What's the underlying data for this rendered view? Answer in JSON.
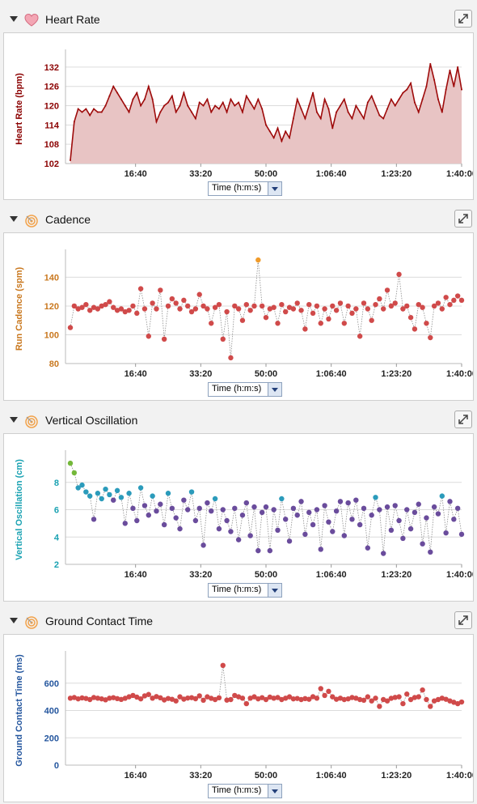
{
  "panels": [
    {
      "id": "hr",
      "title": "Heart Rate",
      "icon": "heart-icon",
      "x_selector": "Time (h:m:s)",
      "chart_data": {
        "type": "area",
        "ylabel": "Heart Rate (bpm)",
        "ylabel_color": "#8b0000",
        "line_color": "#9e0b0b",
        "fill_color": "#e8c4c4",
        "ylim": [
          102,
          136
        ],
        "yticks": [
          102,
          108,
          114,
          120,
          126,
          132
        ],
        "xlim_seconds": [
          0,
          6000
        ],
        "xticks": [
          "16:40",
          "33:20",
          "50:00",
          "1:06:40",
          "1:23:20",
          "1:40:00"
        ],
        "x_seconds": [
          0,
          60,
          120,
          180,
          240,
          300,
          360,
          420,
          480,
          540,
          600,
          660,
          720,
          780,
          840,
          900,
          960,
          1020,
          1080,
          1140,
          1200,
          1260,
          1320,
          1380,
          1440,
          1500,
          1560,
          1620,
          1680,
          1740,
          1800,
          1860,
          1920,
          1980,
          2040,
          2100,
          2160,
          2220,
          2280,
          2340,
          2400,
          2460,
          2520,
          2580,
          2640,
          2700,
          2760,
          2820,
          2880,
          2940,
          3000,
          3060,
          3120,
          3180,
          3240,
          3300,
          3360,
          3420,
          3480,
          3540,
          3600,
          3660,
          3720,
          3780,
          3840,
          3900,
          3960,
          4020,
          4080,
          4140,
          4200,
          4260,
          4320,
          4380,
          4440,
          4500,
          4560,
          4620,
          4680,
          4740,
          4800,
          4860,
          4920,
          4980,
          5040,
          5100,
          5160,
          5220,
          5280,
          5340,
          5400,
          5460,
          5520,
          5580,
          5640,
          5700,
          5760,
          5820,
          5880,
          5940,
          6000
        ],
        "values": [
          103,
          115,
          119,
          118,
          119,
          117,
          119,
          118,
          118,
          120,
          123,
          126,
          124,
          122,
          120,
          118,
          122,
          124,
          120,
          122,
          126,
          122,
          115,
          118,
          120,
          121,
          123,
          118,
          120,
          124,
          120,
          118,
          116,
          121,
          120,
          122,
          118,
          120,
          119,
          121,
          118,
          122,
          120,
          121,
          118,
          123,
          121,
          119,
          122,
          119,
          114,
          112,
          110,
          113,
          109,
          112,
          110,
          116,
          122,
          119,
          116,
          120,
          124,
          118,
          116,
          122,
          119,
          113,
          118,
          120,
          122,
          118,
          116,
          120,
          118,
          116,
          121,
          123,
          120,
          117,
          116,
          119,
          122,
          120,
          122,
          124,
          125,
          127,
          121,
          118,
          122,
          126,
          133,
          128,
          122,
          118,
          125,
          131,
          126,
          132,
          125
        ]
      }
    },
    {
      "id": "cad",
      "title": "Cadence",
      "icon": "running-icon",
      "x_selector": "Time (h:m:s)",
      "chart_data": {
        "type": "scatter",
        "ylabel": "Run Cadence (spm)",
        "ylabel_color": "#c9781f",
        "ylim": [
          80,
          156
        ],
        "yticks": [
          80,
          100,
          120,
          140
        ],
        "xlim_seconds": [
          0,
          6000
        ],
        "xticks": [
          "16:40",
          "33:20",
          "50:00",
          "1:06:40",
          "1:23:20",
          "1:40:00"
        ],
        "x_seconds": [
          0,
          60,
          120,
          180,
          240,
          300,
          360,
          420,
          480,
          540,
          600,
          660,
          720,
          780,
          840,
          900,
          960,
          1020,
          1080,
          1140,
          1200,
          1260,
          1320,
          1380,
          1440,
          1500,
          1560,
          1620,
          1680,
          1740,
          1800,
          1860,
          1920,
          1980,
          2040,
          2100,
          2160,
          2220,
          2280,
          2340,
          2400,
          2460,
          2520,
          2580,
          2640,
          2700,
          2760,
          2820,
          2880,
          2940,
          3000,
          3060,
          3120,
          3180,
          3240,
          3300,
          3360,
          3420,
          3480,
          3540,
          3600,
          3660,
          3720,
          3780,
          3840,
          3900,
          3960,
          4020,
          4080,
          4140,
          4200,
          4260,
          4320,
          4380,
          4440,
          4500,
          4560,
          4620,
          4680,
          4740,
          4800,
          4860,
          4920,
          4980,
          5040,
          5100,
          5160,
          5220,
          5280,
          5340,
          5400,
          5460,
          5520,
          5580,
          5640,
          5700,
          5760,
          5820,
          5880,
          5940,
          6000
        ],
        "values": [
          105,
          120,
          118,
          119,
          121,
          117,
          119,
          118,
          120,
          121,
          123,
          119,
          117,
          118,
          116,
          117,
          120,
          115,
          132,
          118,
          99,
          122,
          118,
          131,
          97,
          120,
          125,
          122,
          118,
          124,
          120,
          116,
          118,
          128,
          120,
          118,
          108,
          119,
          121,
          97,
          116,
          84,
          120,
          118,
          110,
          121,
          117,
          120,
          152,
          120,
          112,
          118,
          119,
          108,
          121,
          116,
          119,
          118,
          122,
          117,
          104,
          121,
          115,
          120,
          108,
          118,
          111,
          120,
          117,
          122,
          108,
          120,
          115,
          118,
          99,
          122,
          118,
          110,
          121,
          125,
          118,
          131,
          120,
          122,
          142,
          118,
          120,
          112,
          104,
          121,
          119,
          108,
          98,
          120,
          122,
          118,
          126,
          121,
          124,
          127,
          124
        ],
        "highlight_index": 48,
        "highlight_color": "#f09b2a",
        "dot_color": "#d04a4a"
      }
    },
    {
      "id": "vo",
      "title": "Vertical Oscillation",
      "icon": "running-icon",
      "x_selector": "Time (h:m:s)",
      "chart_data": {
        "type": "scatter",
        "ylabel": "Vertical Oscillation (cm)",
        "ylabel_color": "#1aa2b2",
        "ylim": [
          2,
          10
        ],
        "yticks": [
          2,
          4,
          6,
          8
        ],
        "xlim_seconds": [
          0,
          6000
        ],
        "xticks": [
          "16:40",
          "33:20",
          "50:00",
          "1:06:40",
          "1:23:20",
          "1:40:00"
        ],
        "x_seconds": [
          0,
          60,
          120,
          180,
          240,
          300,
          360,
          420,
          480,
          540,
          600,
          660,
          720,
          780,
          840,
          900,
          960,
          1020,
          1080,
          1140,
          1200,
          1260,
          1320,
          1380,
          1440,
          1500,
          1560,
          1620,
          1680,
          1740,
          1800,
          1860,
          1920,
          1980,
          2040,
          2100,
          2160,
          2220,
          2280,
          2340,
          2400,
          2460,
          2520,
          2580,
          2640,
          2700,
          2760,
          2820,
          2880,
          2940,
          3000,
          3060,
          3120,
          3180,
          3240,
          3300,
          3360,
          3420,
          3480,
          3540,
          3600,
          3660,
          3720,
          3780,
          3840,
          3900,
          3960,
          4020,
          4080,
          4140,
          4200,
          4260,
          4320,
          4380,
          4440,
          4500,
          4560,
          4620,
          4680,
          4740,
          4800,
          4860,
          4920,
          4980,
          5040,
          5100,
          5160,
          5220,
          5280,
          5340,
          5400,
          5460,
          5520,
          5580,
          5640,
          5700,
          5760,
          5820,
          5880,
          5940,
          6000
        ],
        "values": [
          9.4,
          8.7,
          7.6,
          7.8,
          7.3,
          7.0,
          5.3,
          7.2,
          6.8,
          7.5,
          7.1,
          6.7,
          7.4,
          6.9,
          5.0,
          7.2,
          6.1,
          5.2,
          7.6,
          6.3,
          5.6,
          7.0,
          5.9,
          6.4,
          4.9,
          7.2,
          6.1,
          5.4,
          4.6,
          6.7,
          6.0,
          7.3,
          5.2,
          6.1,
          3.4,
          6.5,
          5.9,
          6.8,
          4.6,
          6.0,
          5.2,
          4.4,
          6.1,
          3.8,
          5.6,
          6.5,
          4.1,
          6.2,
          3.0,
          5.8,
          6.2,
          3.0,
          6.0,
          4.5,
          6.8,
          5.3,
          3.7,
          6.1,
          5.6,
          6.6,
          4.2,
          5.8,
          4.9,
          6.0,
          3.1,
          6.3,
          5.1,
          4.4,
          5.9,
          6.6,
          4.1,
          6.5,
          5.3,
          6.7,
          4.9,
          6.1,
          3.2,
          5.6,
          6.9,
          6.0,
          2.8,
          6.2,
          4.5,
          6.3,
          5.2,
          3.9,
          6.0,
          4.6,
          5.8,
          6.4,
          3.5,
          5.4,
          2.9,
          6.2,
          5.7,
          7.0,
          4.3,
          6.6,
          5.3,
          6.1,
          4.2
        ],
        "high_color": "#2b9bbb",
        "low_color": "#6a4c9c",
        "first_color": "#74b83a",
        "threshold": 6.8
      }
    },
    {
      "id": "gct",
      "title": "Ground Contact Time",
      "icon": "running-icon",
      "x_selector": "Time (h:m:s)",
      "chart_data": {
        "type": "scatter",
        "ylabel": "Ground Contact Time (ms)",
        "ylabel_color": "#24569e",
        "ylim": [
          0,
          800
        ],
        "yticks": [
          0,
          200,
          400,
          600
        ],
        "xlim_seconds": [
          0,
          6000
        ],
        "xticks": [
          "16:40",
          "33:20",
          "50:00",
          "1:06:40",
          "1:23:20",
          "1:40:00"
        ],
        "x_seconds": [
          0,
          60,
          120,
          180,
          240,
          300,
          360,
          420,
          480,
          540,
          600,
          660,
          720,
          780,
          840,
          900,
          960,
          1020,
          1080,
          1140,
          1200,
          1260,
          1320,
          1380,
          1440,
          1500,
          1560,
          1620,
          1680,
          1740,
          1800,
          1860,
          1920,
          1980,
          2040,
          2100,
          2160,
          2220,
          2280,
          2340,
          2400,
          2460,
          2520,
          2580,
          2640,
          2700,
          2760,
          2820,
          2880,
          2940,
          3000,
          3060,
          3120,
          3180,
          3240,
          3300,
          3360,
          3420,
          3480,
          3540,
          3600,
          3660,
          3720,
          3780,
          3840,
          3900,
          3960,
          4020,
          4080,
          4140,
          4200,
          4260,
          4320,
          4380,
          4440,
          4500,
          4560,
          4620,
          4680,
          4740,
          4800,
          4860,
          4920,
          4980,
          5040,
          5100,
          5160,
          5220,
          5280,
          5340,
          5400,
          5460,
          5520,
          5580,
          5640,
          5700,
          5760,
          5820,
          5880,
          5940,
          6000
        ],
        "values": [
          490,
          495,
          485,
          492,
          488,
          480,
          495,
          490,
          485,
          478,
          490,
          494,
          487,
          481,
          489,
          500,
          510,
          498,
          485,
          507,
          517,
          490,
          502,
          493,
          477,
          488,
          482,
          470,
          500,
          483,
          491,
          494,
          486,
          507,
          475,
          500,
          489,
          480,
          493,
          730,
          476,
          480,
          510,
          500,
          490,
          450,
          490,
          500,
          485,
          494,
          480,
          498,
          490,
          495,
          480,
          490,
          500,
          485,
          488,
          480,
          487,
          482,
          501,
          490,
          560,
          510,
          540,
          500,
          482,
          490,
          480,
          485,
          495,
          490,
          480,
          475,
          500,
          470,
          490,
          430,
          480,
          470,
          489,
          496,
          500,
          450,
          520,
          480,
          495,
          500,
          550,
          480,
          430,
          470,
          480,
          490,
          482,
          470,
          460,
          450,
          462
        ],
        "dot_color": "#d04a4a"
      }
    }
  ]
}
